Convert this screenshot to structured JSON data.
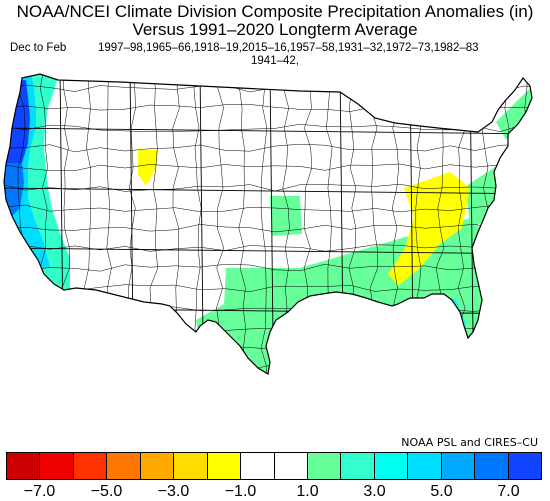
{
  "title_line1": "NOAA/NCEI Climate Division Composite Precipitation Anomalies (in)",
  "title_line2": "Versus 1991–2020 Longterm Average",
  "season": "Dec to Feb",
  "years_line1": "1997–98,1965–66,1918–19,2015–16,1957–58,1931–32,1972–73,1982–83",
  "years_line2": "1941–42,",
  "credit": "NOAA PSL and CIRES–CU",
  "legend": {
    "colors": [
      "#cc0000",
      "#ee0000",
      "#ff3300",
      "#ff7700",
      "#ffaa00",
      "#ffdd00",
      "#ffff00",
      "#ffffff",
      "#ffffff",
      "#66ff99",
      "#33ffcc",
      "#00ffee",
      "#00ddff",
      "#00aaff",
      "#0077ff",
      "#1144ff"
    ],
    "tick_labels": [
      "−7.0",
      "−5.0",
      "−3.0",
      "−1.0",
      "1.0",
      "3.0",
      "5.0",
      "7.0"
    ]
  },
  "map": {
    "region": "Contiguous United States climate divisions",
    "colors": {
      "outline": "#000000",
      "land_near_normal": "#ffffff",
      "wet_1_2": "#66ff99",
      "wet_2_3": "#33ffcc",
      "wet_3_4": "#00ffee",
      "wet_4_5": "#00ddff",
      "wet_5_6": "#00aaff",
      "wet_6_7": "#0077ff",
      "wet_7_plus": "#1144ff",
      "dry_1_2": "#ffff00"
    }
  }
}
